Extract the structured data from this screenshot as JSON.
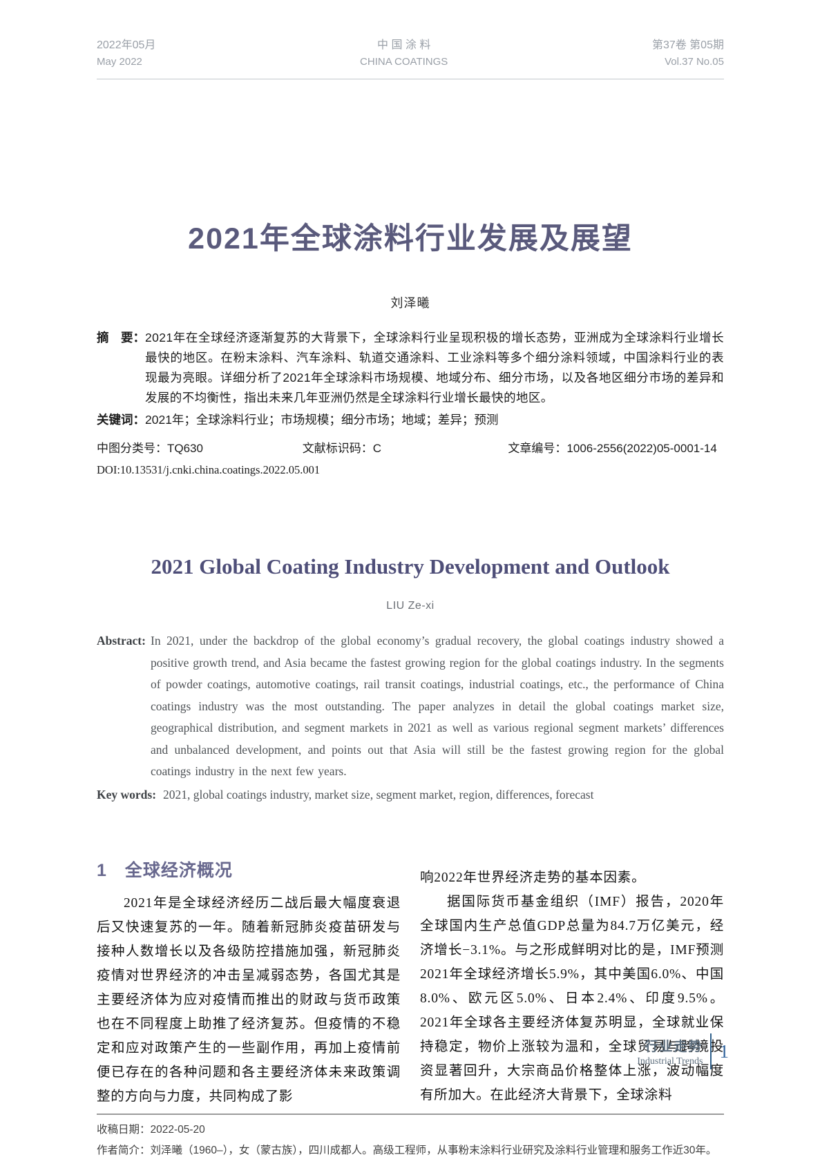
{
  "running_head": {
    "left_zh": "2022年05月",
    "left_en": "May 2022",
    "center_zh": "中 国 涂 料",
    "center_en": "CHINA COATINGS",
    "right_zh": "第37卷 第05期",
    "right_en": "Vol.37  No.05"
  },
  "article": {
    "title_zh": "2021年全球涂料行业发展及展望",
    "author_zh": "刘泽曦",
    "abstract_label": "摘　要：",
    "abstract_text": "2021年在全球经济逐渐复苏的大背景下，全球涂料行业呈现积极的增长态势，亚洲成为全球涂料行业增长最快的地区。在粉末涂料、汽车涂料、轨道交通涂料、工业涂料等多个细分涂料领域，中国涂料行业的表现最为亮眼。详细分析了2021年全球涂料市场规模、地域分布、细分市场，以及各地区细分市场的差异和发展的不均衡性，指出未来几年亚洲仍然是全球涂料行业增长最快的地区。",
    "keywords_label": "关键词：",
    "keywords_text": "2021年；全球涂料行业；市场规模；细分市场；地域；差异；预测",
    "clc_label": "中图分类号：",
    "clc_value": "TQ630",
    "doc_code_label": "文献标识码：",
    "doc_code_value": "C",
    "article_id_label": "文章编号：",
    "article_id_value": "1006-2556(2022)05-0001-14",
    "doi": "DOI:10.13531/j.cnki.china.coatings.2022.05.001"
  },
  "english": {
    "title": "2021 Global Coating Industry Development and Outlook",
    "author": "LIU Ze-xi",
    "abstract_label": "Abstract:",
    "abstract_text": "In 2021, under the backdrop of the global economy’s gradual recovery, the global coatings industry showed a positive growth trend, and Asia became the fastest growing region for the global coatings industry. In the segments of powder coatings, automotive coatings, rail transit coatings, industrial coatings, etc., the performance of China coatings industry was the most outstanding. The paper analyzes in detail the global coatings market size, geographical distribution, and segment markets in 2021 as well as various regional segment markets’ differences and unbalanced development, and points out that Asia will still be the fastest growing region for the global coatings industry in the next few years.",
    "keywords_label": "Key words:",
    "keywords_text": "2021, global coatings industry, market size, segment market, region, differences, forecast"
  },
  "section1": {
    "number": "1",
    "title": "全球经济概况"
  },
  "body": {
    "left_para": "2021年是全球经济经历二战后最大幅度衰退后又快速复苏的一年。随着新冠肺炎疫苗研发与接种人数增长以及各级防控措施加强，新冠肺炎疫情对世界经济的冲击呈减弱态势，各国尤其是主要经济体为应对疫情而推出的财政与货币政策也在不同程度上助推了经济复苏。但疫情的不稳定和应对政策产生的一些副作用，再加上疫情前便已存在的各种问题和各主要经济体未来政策调整的方向与力度，共同构成了影",
    "right_cont": "响2022年世界经济走势的基本因素。",
    "right_para": "据国际货币基金组织（IMF）报告，2020年全球国内生产总值GDP总量为84.7万亿美元，经济增长−3.1%。与之形成鲜明对比的是，IMF预测2021年全球经济增长5.9%，其中美国6.0%、中国8.0%、欧元区5.0%、日本2.4%、印度9.5%。2021年全球各主要经济体复苏明显，全球就业保持稳定，物价上涨较为温和，全球贸易与跨境投资显著回升，大宗商品价格整体上涨，波动幅度有所加大。在此经济大背景下，全球涂料"
  },
  "footnote": {
    "received_label": "收稿日期：",
    "received_value": "2022-05-20",
    "bio_label": "作者简介：",
    "bio_text": "刘泽曦（1960–），女（蒙古族），四川成都人。高级工程师，从事粉末涂料行业研究及涂料行业管理和服务工作近30年。"
  },
  "page_footer": {
    "column_zh": "行业走势",
    "column_en": "Industrial Trends",
    "page_number": "1"
  },
  "colors": {
    "title_purple": "#5a5a7c",
    "english_title_purple": "#4e4e78",
    "section_purple": "#68688e",
    "header_gray": "#999fa7",
    "footer_slate": "#5d6e7d",
    "footer_blue": "#31639c"
  }
}
